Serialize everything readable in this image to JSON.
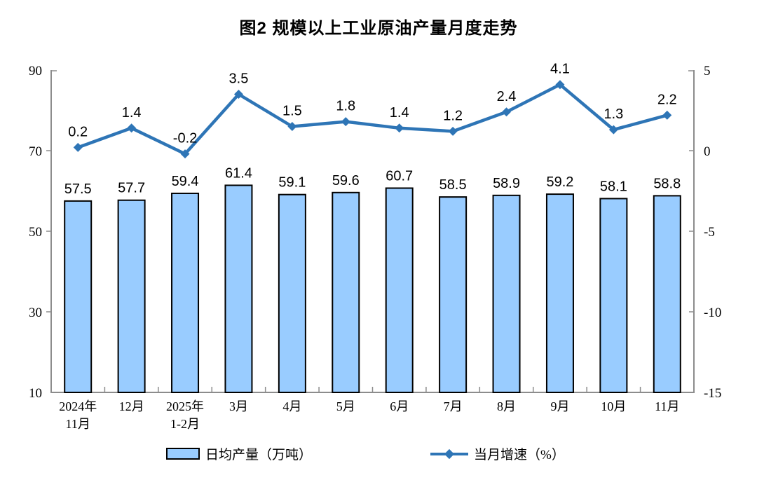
{
  "title": "图2  规模以上工业原油产量月度走势",
  "chart_data": {
    "type": "bar",
    "subtype": "bar+line dual-axis combo",
    "title": "图2  规模以上工业原油产量月度走势",
    "categories": [
      "2024年\n11月",
      "12月",
      "2025年\n1-2月",
      "3月",
      "4月",
      "5月",
      "6月",
      "7月",
      "8月",
      "9月",
      "10月",
      "11月"
    ],
    "series": [
      {
        "name": "日均产量（万吨）",
        "type": "bar",
        "axis": "left",
        "values": [
          57.5,
          57.7,
          59.4,
          61.4,
          59.1,
          59.6,
          60.7,
          58.5,
          58.9,
          59.2,
          58.1,
          58.8
        ],
        "color": "#99CCFF",
        "border_color": "#000000"
      },
      {
        "name": "当月增速（%）",
        "type": "line",
        "axis": "right",
        "values": [
          0.2,
          1.4,
          -0.2,
          3.5,
          1.5,
          1.8,
          1.4,
          1.2,
          2.4,
          4.1,
          1.3,
          2.2
        ],
        "color": "#2E75B6",
        "marker": "diamond"
      }
    ],
    "left_axis": {
      "min": 10,
      "max": 90,
      "ticks": [
        90,
        70,
        50,
        30,
        10
      ]
    },
    "right_axis": {
      "min": -15,
      "max": 5,
      "ticks": [
        5,
        0,
        -5,
        -10,
        -15
      ]
    },
    "grid": false,
    "legend_position": "bottom",
    "data_labels": true,
    "axis_color": "#8C8C8C",
    "text_color": "#000000",
    "background": "#FFFFFF"
  },
  "legend": {
    "bar_label": "日均产量（万吨）",
    "line_label": "当月增速（%）"
  }
}
